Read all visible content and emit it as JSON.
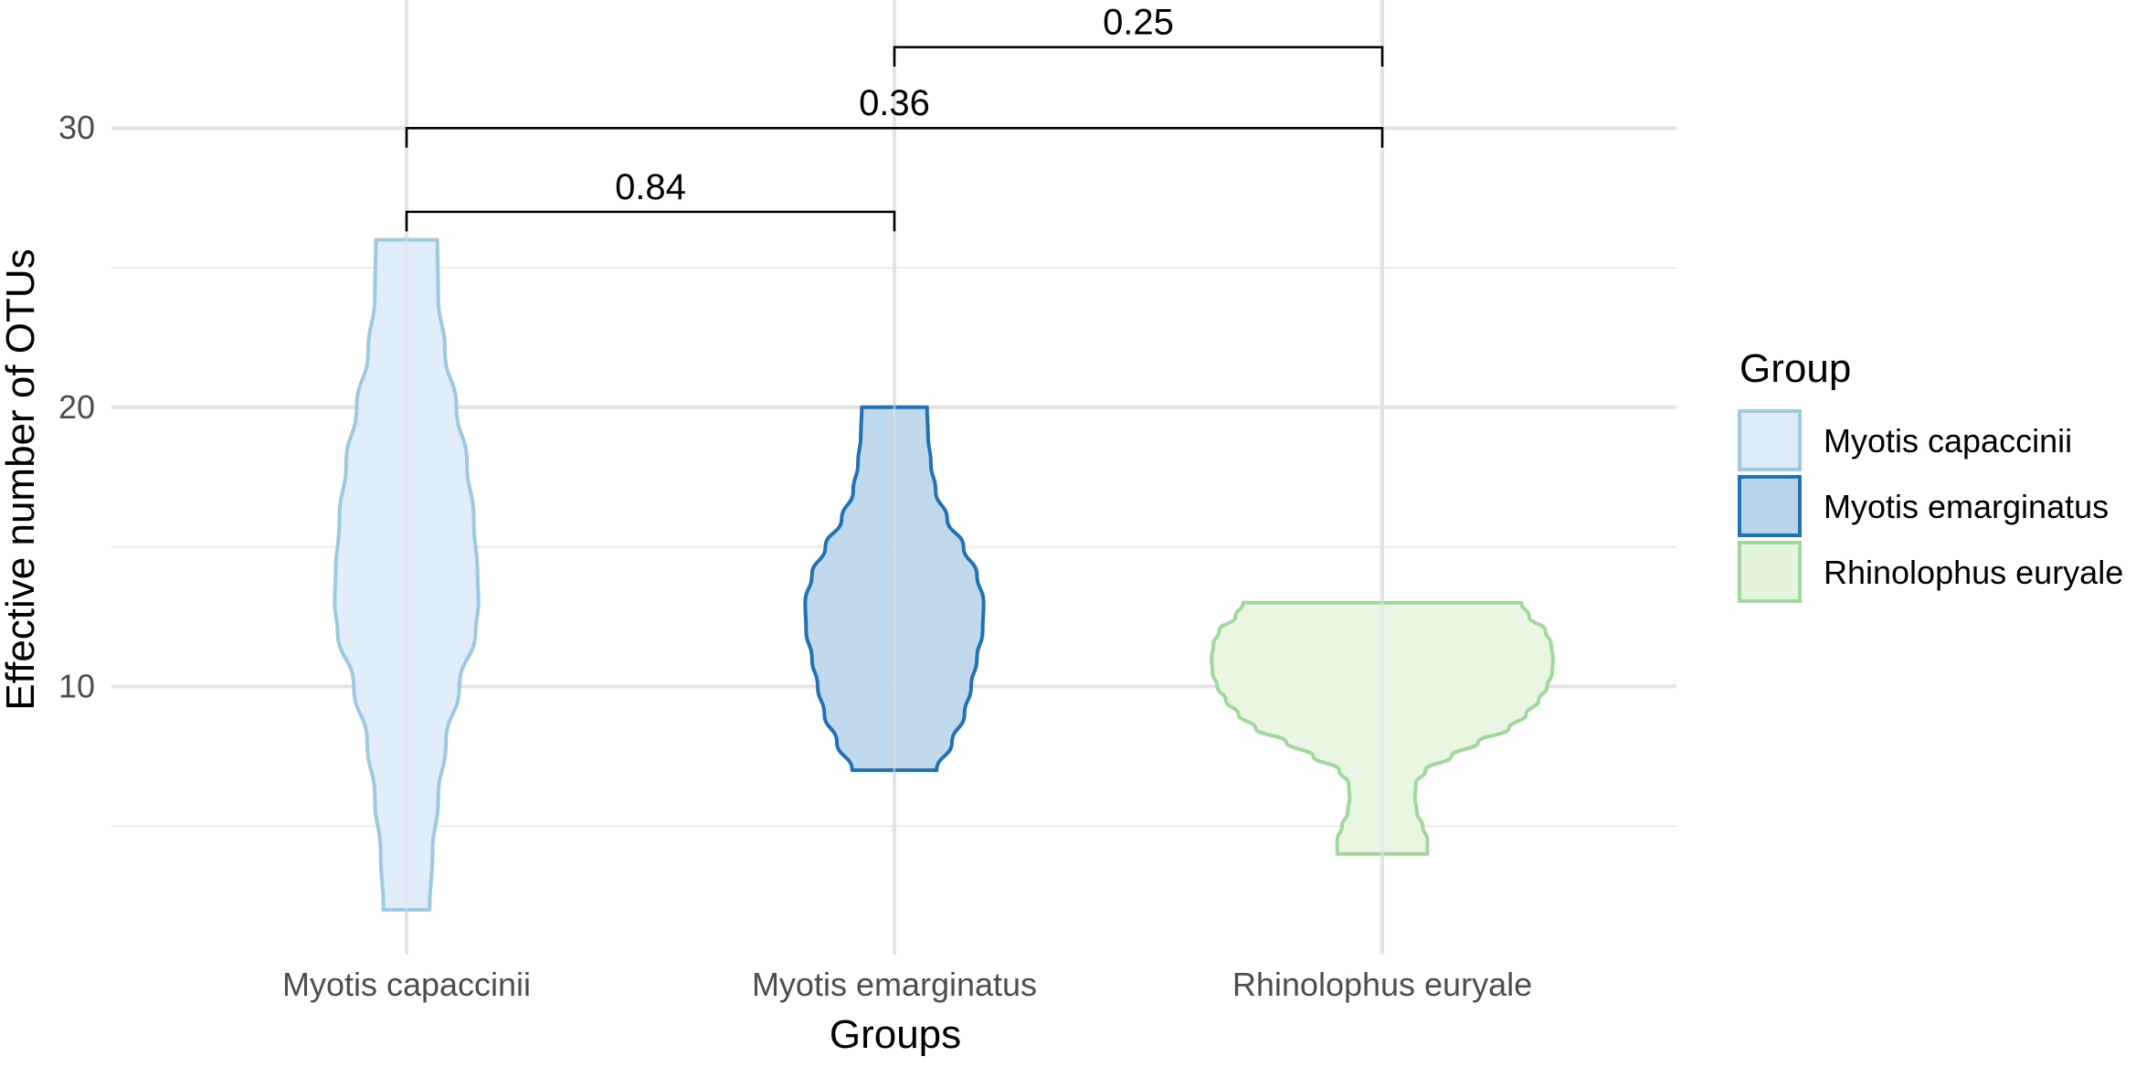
{
  "chart_data": {
    "type": "violin",
    "xlabel": "Groups",
    "ylabel": "Effective number of OTUs",
    "categories": [
      "Myotis capaccinii",
      "Myotis emarginatus",
      "Rhinolophus euryale"
    ],
    "ylim": [
      0,
      33
    ],
    "yticks": [
      10,
      20,
      30
    ],
    "grid": true,
    "series": [
      {
        "name": "Myotis capaccinii",
        "fill": "#deebf7",
        "stroke": "#9ecae1",
        "min": 2,
        "max": 26,
        "profile": [
          [
            2,
            0.24
          ],
          [
            4,
            0.27
          ],
          [
            6,
            0.33
          ],
          [
            8,
            0.41
          ],
          [
            10,
            0.55
          ],
          [
            12,
            0.72
          ],
          [
            13,
            0.75
          ],
          [
            14,
            0.74
          ],
          [
            16,
            0.7
          ],
          [
            18,
            0.63
          ],
          [
            20,
            0.52
          ],
          [
            22,
            0.4
          ],
          [
            24,
            0.33
          ],
          [
            26,
            0.32
          ]
        ]
      },
      {
        "name": "Myotis emarginatus",
        "fill": "#b9d5ea",
        "stroke": "#2171b5",
        "min": 7,
        "max": 20,
        "profile": [
          [
            7,
            0.44
          ],
          [
            8,
            0.6
          ],
          [
            9,
            0.73
          ],
          [
            10,
            0.8
          ],
          [
            11,
            0.86
          ],
          [
            12,
            0.92
          ],
          [
            13,
            0.93
          ],
          [
            14,
            0.86
          ],
          [
            15,
            0.72
          ],
          [
            16,
            0.55
          ],
          [
            17,
            0.43
          ],
          [
            18,
            0.38
          ],
          [
            19,
            0.35
          ],
          [
            20,
            0.34
          ]
        ]
      },
      {
        "name": "Rhinolophus euryale",
        "fill": "#e5f5e0",
        "stroke": "#a1d99b",
        "min": 4,
        "max": 13,
        "profile": [
          [
            4,
            0.47
          ],
          [
            4.5,
            0.47
          ],
          [
            5,
            0.42
          ],
          [
            5.5,
            0.36
          ],
          [
            6,
            0.34
          ],
          [
            6.5,
            0.35
          ],
          [
            7,
            0.45
          ],
          [
            7.5,
            0.72
          ],
          [
            8,
            1.0
          ],
          [
            8.5,
            1.32
          ],
          [
            9,
            1.5
          ],
          [
            9.5,
            1.63
          ],
          [
            10,
            1.72
          ],
          [
            10.5,
            1.77
          ],
          [
            11,
            1.78
          ],
          [
            11.5,
            1.76
          ],
          [
            12,
            1.7
          ],
          [
            12.5,
            1.53
          ],
          [
            13,
            1.45
          ]
        ]
      }
    ],
    "comparisons": [
      {
        "from": 0,
        "to": 1,
        "label": "0.84",
        "y": 27,
        "tip": 26.3
      },
      {
        "from": 0,
        "to": 2,
        "label": "0.36",
        "y": 30,
        "tip": 29.3
      },
      {
        "from": 1,
        "to": 2,
        "label": "0.25",
        "y": 32.9,
        "tip": 32.2
      }
    ],
    "legend": {
      "title": "Group",
      "position": "right",
      "items": [
        "Myotis capaccinii",
        "Myotis emarginatus",
        "Rhinolophus euryale"
      ]
    }
  }
}
